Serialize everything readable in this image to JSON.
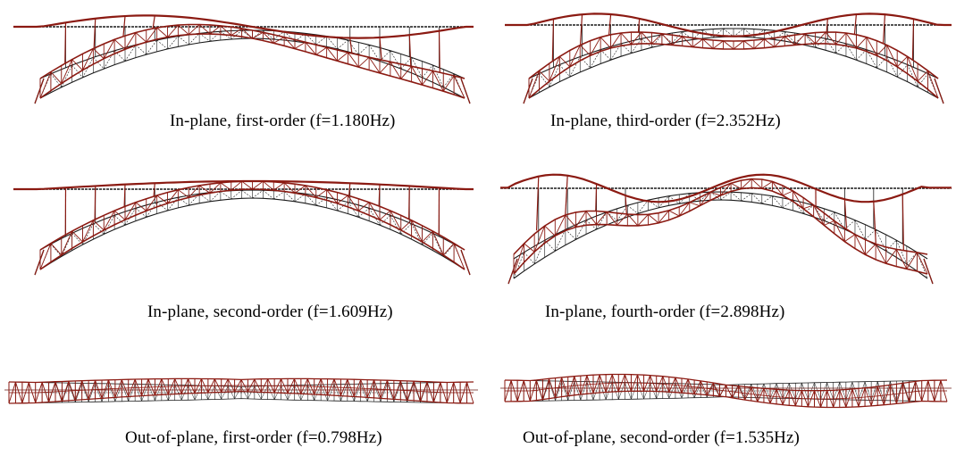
{
  "colors": {
    "undeformed": "#1a1a1a",
    "deformed": "#8b1a12"
  },
  "panels": [
    {
      "id": "ip1",
      "view": "elevation",
      "caption": "In-plane, first-order (f=1.180Hz)",
      "mode_halfwaves": 1,
      "mode_kind": "antisymmetric"
    },
    {
      "id": "ip3",
      "view": "elevation",
      "caption": "In-plane, third-order (f=2.352Hz)",
      "mode_halfwaves": 3,
      "mode_kind": "symmetric"
    },
    {
      "id": "ip2",
      "view": "elevation",
      "caption": "In-plane, second-order (f=1.609Hz)",
      "mode_halfwaves": 1,
      "mode_kind": "symmetric-lift"
    },
    {
      "id": "ip4",
      "view": "elevation",
      "caption": "In-plane, fourth-order (f=2.898Hz)",
      "mode_halfwaves": 4,
      "mode_kind": "antisymmetric"
    },
    {
      "id": "op1",
      "view": "plan",
      "caption": "Out-of-plane, first-order (f=0.798Hz)",
      "mode_halfwaves": 1,
      "mode_kind": "symmetric"
    },
    {
      "id": "op2",
      "view": "plan",
      "caption": "Out-of-plane, second-order (f=1.535Hz)",
      "mode_halfwaves": 2,
      "mode_kind": "antisymmetric"
    }
  ]
}
